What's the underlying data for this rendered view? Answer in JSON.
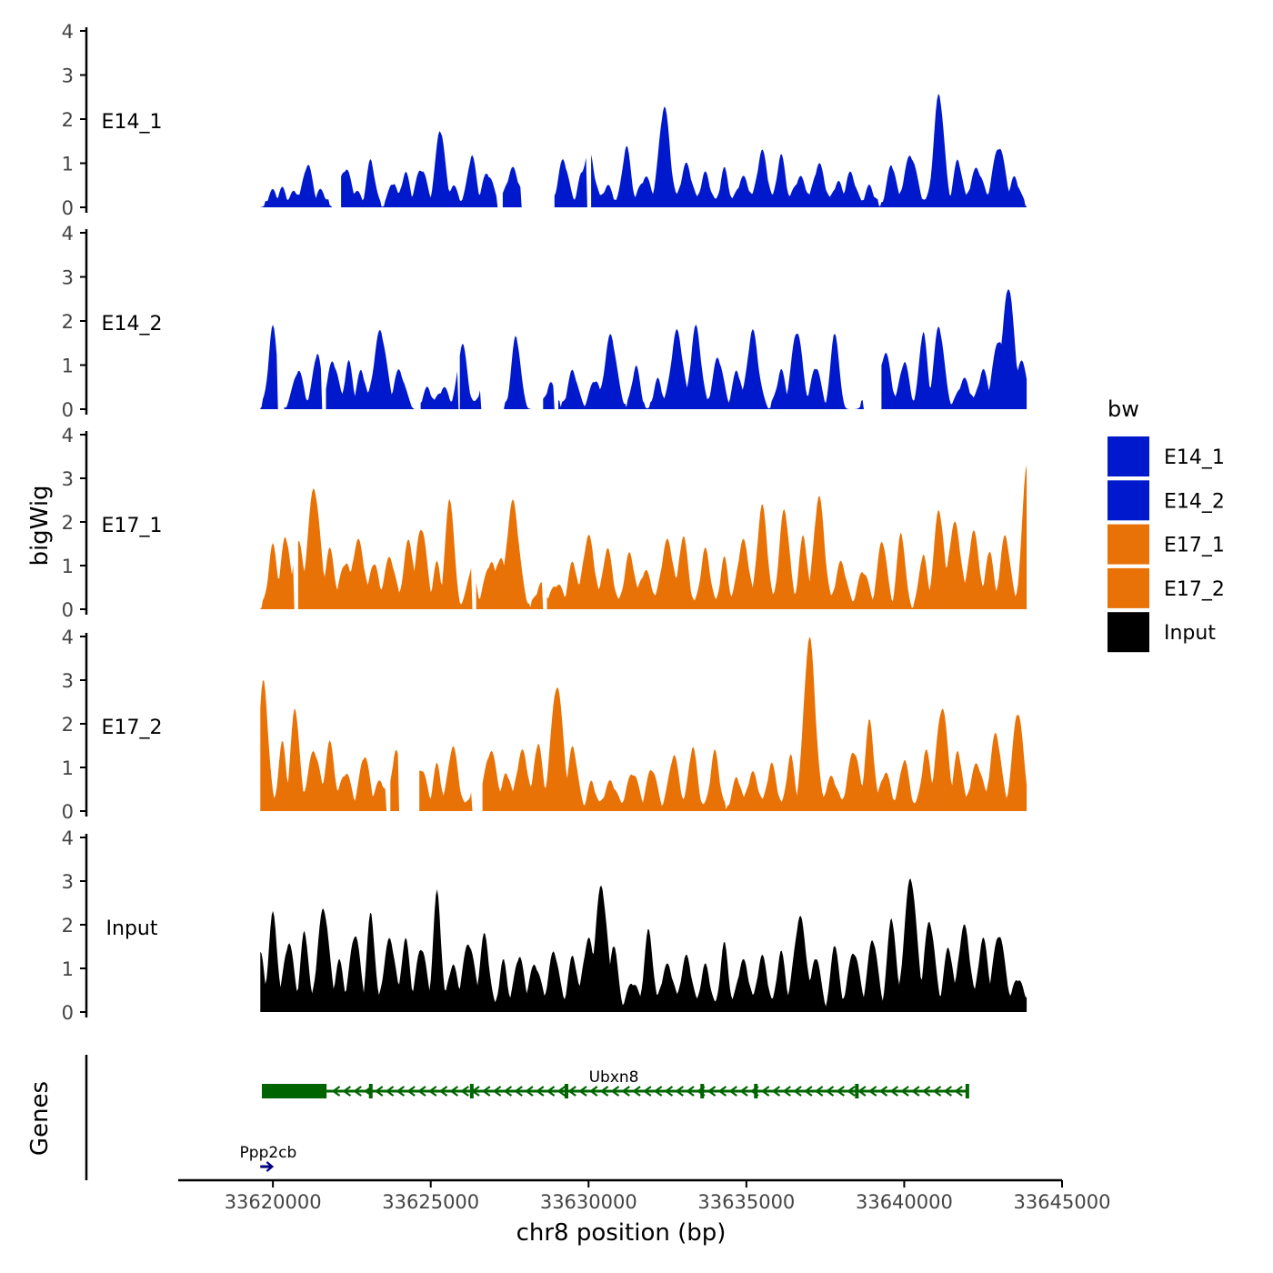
{
  "chart_data": {
    "type": "area",
    "chromosome": "chr8",
    "xlabel": "chr8 position (bp)",
    "xlim": [
      33617000,
      33645000
    ],
    "xticks": [
      33620000,
      33625000,
      33630000,
      33635000,
      33640000,
      33645000
    ],
    "x_tick_labels": [
      "33620000",
      "33625000",
      "33630000",
      "33635000",
      "33640000",
      "33645000"
    ],
    "ylabel": "bigWig",
    "ylim": [
      0,
      4
    ],
    "yticks": [
      0,
      1,
      2,
      3,
      4
    ],
    "y_tick_labels": [
      "0",
      "1",
      "2",
      "3",
      "4"
    ],
    "track_range": [
      33619600,
      33643900
    ],
    "legend": {
      "title": "bw",
      "position": "right",
      "entries": [
        {
          "label": "E14_1",
          "color": "#0019CC"
        },
        {
          "label": "E14_2",
          "color": "#0019CC"
        },
        {
          "label": "E17_1",
          "color": "#E87206"
        },
        {
          "label": "E17_2",
          "color": "#E87206"
        },
        {
          "label": "Input",
          "color": "#000000"
        }
      ]
    },
    "series": [
      {
        "name": "E14_1",
        "color": "#0019CC",
        "peaks": [
          [
            33620000,
            0.3
          ],
          [
            33620300,
            0.35
          ],
          [
            33620700,
            0.3
          ],
          [
            33621100,
            0.9
          ],
          [
            33621500,
            0.3
          ],
          [
            33622300,
            0.8
          ],
          [
            33622600,
            0.3
          ],
          [
            33623100,
            1.0
          ],
          [
            33623800,
            0.5
          ],
          [
            33624200,
            0.7
          ],
          [
            33624700,
            0.8
          ],
          [
            33625300,
            1.7
          ],
          [
            33625700,
            0.4
          ],
          [
            33626300,
            1.1
          ],
          [
            33626800,
            0.7
          ],
          [
            33627600,
            0.8
          ],
          [
            33628400,
            0.5
          ],
          [
            33629200,
            1.0
          ],
          [
            33629800,
            0.7
          ],
          [
            33630000,
            1.2
          ],
          [
            33630600,
            0.4
          ],
          [
            33631200,
            1.3
          ],
          [
            33631800,
            0.6
          ],
          [
            33632400,
            2.2
          ],
          [
            33633100,
            0.9
          ],
          [
            33633700,
            0.7
          ],
          [
            33634300,
            0.8
          ],
          [
            33634900,
            0.6
          ],
          [
            33635500,
            1.2
          ],
          [
            33636100,
            1.1
          ],
          [
            33636700,
            0.6
          ],
          [
            33637300,
            0.9
          ],
          [
            33637900,
            0.5
          ],
          [
            33638300,
            0.7
          ],
          [
            33638900,
            0.4
          ],
          [
            33639600,
            0.9
          ],
          [
            33640200,
            1.1
          ],
          [
            33641100,
            2.5
          ],
          [
            33641700,
            1.0
          ],
          [
            33642300,
            0.8
          ],
          [
            33643000,
            1.3
          ],
          [
            33643500,
            0.6
          ]
        ],
        "gaps": [
          [
            33621850,
            33622150
          ],
          [
            33627100,
            33627250
          ],
          [
            33627850,
            33628900
          ],
          [
            33629950,
            33630050
          ]
        ]
      },
      {
        "name": "E14_2",
        "color": "#0019CC",
        "peaks": [
          [
            33620000,
            1.8
          ],
          [
            33620800,
            0.8
          ],
          [
            33621400,
            1.2
          ],
          [
            33621900,
            1.0
          ],
          [
            33622400,
            1.0
          ],
          [
            33622800,
            0.8
          ],
          [
            33623400,
            1.7
          ],
          [
            33624000,
            0.8
          ],
          [
            33624900,
            0.4
          ],
          [
            33625400,
            0.4
          ],
          [
            33626000,
            1.4
          ],
          [
            33626800,
            1.1
          ],
          [
            33627700,
            1.6
          ],
          [
            33628800,
            0.5
          ],
          [
            33629500,
            0.8
          ],
          [
            33630200,
            0.6
          ],
          [
            33630700,
            1.6
          ],
          [
            33631500,
            0.9
          ],
          [
            33632200,
            0.6
          ],
          [
            33632800,
            1.7
          ],
          [
            33633400,
            1.8
          ],
          [
            33634100,
            1.1
          ],
          [
            33634700,
            0.8
          ],
          [
            33635200,
            1.7
          ],
          [
            33636100,
            0.8
          ],
          [
            33636600,
            1.7
          ],
          [
            33637200,
            0.9
          ],
          [
            33637800,
            1.7
          ],
          [
            33638900,
            0.6
          ],
          [
            33639400,
            1.2
          ],
          [
            33640000,
            1.0
          ],
          [
            33640600,
            1.7
          ],
          [
            33641100,
            1.8
          ],
          [
            33641900,
            0.6
          ],
          [
            33642500,
            0.8
          ],
          [
            33643000,
            1.5
          ],
          [
            33643300,
            2.7
          ],
          [
            33643700,
            1.0
          ]
        ],
        "gaps": [
          [
            33620150,
            33620350
          ],
          [
            33621550,
            33621650
          ],
          [
            33624450,
            33624650
          ],
          [
            33625850,
            33625900
          ],
          [
            33626600,
            33627300
          ],
          [
            33628200,
            33628550
          ],
          [
            33628900,
            33629000
          ],
          [
            33638700,
            33639250
          ]
        ]
      },
      {
        "name": "E17_1",
        "color": "#E87206",
        "peaks": [
          [
            33620000,
            1.4
          ],
          [
            33620400,
            1.6
          ],
          [
            33620800,
            1.5
          ],
          [
            33621300,
            2.7
          ],
          [
            33621800,
            1.3
          ],
          [
            33622300,
            1.0
          ],
          [
            33622700,
            1.5
          ],
          [
            33623200,
            1.0
          ],
          [
            33623700,
            1.1
          ],
          [
            33624300,
            1.5
          ],
          [
            33624700,
            1.8
          ],
          [
            33625200,
            1.0
          ],
          [
            33625600,
            2.5
          ],
          [
            33626300,
            0.9
          ],
          [
            33626900,
            1.0
          ],
          [
            33627200,
            1.1
          ],
          [
            33627600,
            2.4
          ],
          [
            33628500,
            0.5
          ],
          [
            33629000,
            0.5
          ],
          [
            33629500,
            1.0
          ],
          [
            33630000,
            1.6
          ],
          [
            33630600,
            1.3
          ],
          [
            33631300,
            1.2
          ],
          [
            33631800,
            0.8
          ],
          [
            33632500,
            1.5
          ],
          [
            33633000,
            1.6
          ],
          [
            33633700,
            1.3
          ],
          [
            33634300,
            1.1
          ],
          [
            33634900,
            1.5
          ],
          [
            33635500,
            2.3
          ],
          [
            33636200,
            2.2
          ],
          [
            33636800,
            1.6
          ],
          [
            33637300,
            2.5
          ],
          [
            33638000,
            1.0
          ],
          [
            33638700,
            0.8
          ],
          [
            33639300,
            1.5
          ],
          [
            33639900,
            1.7
          ],
          [
            33640600,
            1.2
          ],
          [
            33641100,
            2.2
          ],
          [
            33641600,
            1.9
          ],
          [
            33642200,
            1.7
          ],
          [
            33642700,
            1.3
          ],
          [
            33643200,
            1.6
          ],
          [
            33643900,
            3.3
          ]
        ],
        "gaps": [
          [
            33620650,
            33620780
          ],
          [
            33626300,
            33626400
          ],
          [
            33628550,
            33628650
          ]
        ]
      },
      {
        "name": "E17_2",
        "color": "#E87206",
        "peaks": [
          [
            33619700,
            2.9
          ],
          [
            33620300,
            1.5
          ],
          [
            33620700,
            2.3
          ],
          [
            33621300,
            1.3
          ],
          [
            33621800,
            1.5
          ],
          [
            33622300,
            0.8
          ],
          [
            33622900,
            1.2
          ],
          [
            33623400,
            0.6
          ],
          [
            33623900,
            1.3
          ],
          [
            33624700,
            0.9
          ],
          [
            33625200,
            1.0
          ],
          [
            33625700,
            1.4
          ],
          [
            33626400,
            0.5
          ],
          [
            33626900,
            1.3
          ],
          [
            33627400,
            0.8
          ],
          [
            33627900,
            1.3
          ],
          [
            33628400,
            1.5
          ],
          [
            33629000,
            2.8
          ],
          [
            33629500,
            1.4
          ],
          [
            33630100,
            0.6
          ],
          [
            33630700,
            0.6
          ],
          [
            33631400,
            0.8
          ],
          [
            33632000,
            0.9
          ],
          [
            33632700,
            1.2
          ],
          [
            33633300,
            1.4
          ],
          [
            33634000,
            1.3
          ],
          [
            33634700,
            0.7
          ],
          [
            33635200,
            0.8
          ],
          [
            33635800,
            1.0
          ],
          [
            33636400,
            1.2
          ],
          [
            33637000,
            3.9
          ],
          [
            33637700,
            0.7
          ],
          [
            33638400,
            1.3
          ],
          [
            33638900,
            2.0
          ],
          [
            33639400,
            0.8
          ],
          [
            33640000,
            1.1
          ],
          [
            33640700,
            1.3
          ],
          [
            33641200,
            2.3
          ],
          [
            33641700,
            1.3
          ],
          [
            33642300,
            1.0
          ],
          [
            33642900,
            1.7
          ],
          [
            33643600,
            2.2
          ]
        ],
        "gaps": [
          [
            33623600,
            33623700
          ],
          [
            33624000,
            33624600
          ],
          [
            33626300,
            33626600
          ]
        ]
      },
      {
        "name": "Input",
        "color": "#000000",
        "peaks": [
          [
            33619600,
            1.3
          ],
          [
            33620000,
            2.2
          ],
          [
            33620500,
            1.5
          ],
          [
            33621000,
            1.8
          ],
          [
            33621600,
            2.3
          ],
          [
            33622100,
            1.1
          ],
          [
            33622600,
            1.7
          ],
          [
            33623100,
            2.2
          ],
          [
            33623700,
            1.6
          ],
          [
            33624200,
            1.6
          ],
          [
            33624700,
            1.4
          ],
          [
            33625200,
            2.7
          ],
          [
            33625700,
            1.0
          ],
          [
            33626200,
            1.5
          ],
          [
            33626700,
            1.7
          ],
          [
            33627300,
            1.1
          ],
          [
            33627800,
            1.2
          ],
          [
            33628300,
            1.0
          ],
          [
            33628900,
            1.3
          ],
          [
            33629500,
            1.2
          ],
          [
            33630000,
            1.6
          ],
          [
            33630400,
            2.8
          ],
          [
            33630800,
            1.5
          ],
          [
            33631400,
            0.6
          ],
          [
            33631900,
            1.8
          ],
          [
            33632500,
            1.0
          ],
          [
            33633100,
            1.2
          ],
          [
            33633700,
            1.0
          ],
          [
            33634300,
            1.5
          ],
          [
            33634900,
            1.1
          ],
          [
            33635500,
            1.2
          ],
          [
            33636100,
            1.3
          ],
          [
            33636700,
            2.1
          ],
          [
            33637200,
            1.2
          ],
          [
            33637800,
            1.5
          ],
          [
            33638400,
            1.3
          ],
          [
            33639000,
            1.6
          ],
          [
            33639600,
            2.1
          ],
          [
            33640200,
            3.0
          ],
          [
            33640800,
            2.0
          ],
          [
            33641400,
            1.4
          ],
          [
            33641900,
            1.9
          ],
          [
            33642500,
            1.6
          ],
          [
            33643000,
            1.7
          ],
          [
            33643600,
            0.7
          ],
          [
            33643900,
            0.3
          ]
        ],
        "gaps": []
      }
    ],
    "genes_track": {
      "label": "Genes",
      "genes": [
        {
          "name": "Ubxn8",
          "strand": "-",
          "start": 33619650,
          "end": 33642000,
          "color": "#006400",
          "thick": [
            33619650,
            33621700
          ],
          "exons": [
            33623100,
            33626300,
            33629300,
            33633600,
            33635300,
            33638500,
            33642000
          ]
        },
        {
          "name": "Ppp2cb",
          "strand": "+",
          "start": 33619600,
          "end": 33619950,
          "color": "#000080"
        }
      ]
    }
  }
}
